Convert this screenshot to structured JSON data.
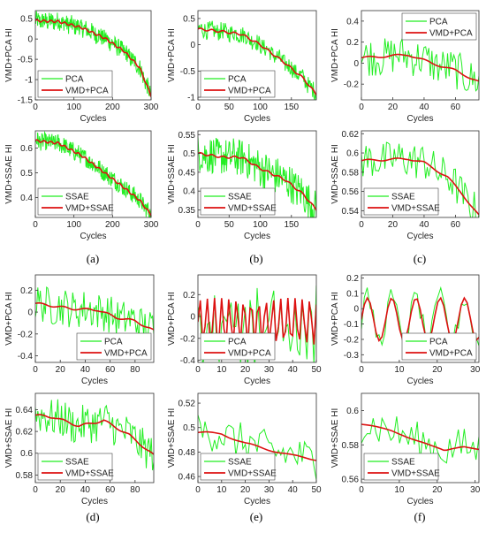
{
  "colors": {
    "raw": "#22ee22",
    "smooth": "#dd1111",
    "axis": "#333333"
  },
  "chart_data": [
    {
      "panel": "a",
      "caption": "(a)",
      "type": "line",
      "xlabel": "Cycles",
      "ylabel": "VMD+PCA HI",
      "xlim": [
        0,
        300
      ],
      "ylim": [
        -1.5,
        0.7
      ],
      "xticks": [
        0,
        100,
        200,
        300
      ],
      "yticks": [
        0.5,
        0,
        -0.5,
        -1,
        -1.5
      ],
      "legend": "bottom-left",
      "series": [
        {
          "name": "PCA",
          "values": [
            [
              0,
              0.45
            ],
            [
              60,
              0.43
            ],
            [
              120,
              0.28
            ],
            [
              180,
              0.02
            ],
            [
              230,
              -0.3
            ],
            [
              270,
              -0.7
            ],
            [
              300,
              -1.4
            ]
          ]
        },
        {
          "name": "VMD+PCA",
          "values": [
            [
              0,
              0.45
            ],
            [
              60,
              0.43
            ],
            [
              120,
              0.28
            ],
            [
              180,
              0.02
            ],
            [
              230,
              -0.3
            ],
            [
              270,
              -0.7
            ],
            [
              300,
              -1.4
            ]
          ]
        }
      ]
    },
    {
      "panel": "b",
      "type": "line",
      "xlabel": "Cycles",
      "ylabel": "VMD+PCA HI",
      "xlim": [
        0,
        190
      ],
      "ylim": [
        -1.05,
        0.65
      ],
      "xticks": [
        0,
        50,
        100,
        150
      ],
      "yticks": [
        0.5,
        0,
        -0.5,
        -1
      ],
      "legend": "bottom-left",
      "series": [
        {
          "name": "PCA",
          "values": [
            [
              0,
              0.3
            ],
            [
              40,
              0.25
            ],
            [
              70,
              0.2
            ],
            [
              100,
              0.0
            ],
            [
              140,
              -0.35
            ],
            [
              170,
              -0.65
            ],
            [
              190,
              -0.95
            ]
          ]
        },
        {
          "name": "VMD+PCA",
          "values": [
            [
              0,
              0.3
            ],
            [
              40,
              0.25
            ],
            [
              70,
              0.2
            ],
            [
              100,
              0.0
            ],
            [
              140,
              -0.35
            ],
            [
              170,
              -0.65
            ],
            [
              190,
              -0.95
            ]
          ]
        }
      ]
    },
    {
      "panel": "c",
      "type": "line",
      "xlabel": "Cycles",
      "ylabel": "VMD+PCA HI",
      "xlim": [
        0,
        75
      ],
      "ylim": [
        -0.35,
        0.5
      ],
      "xticks": [
        0,
        20,
        40,
        60
      ],
      "yticks": [
        0.4,
        0.2,
        0,
        -0.2
      ],
      "legend": "top-right",
      "series": [
        {
          "name": "PCA",
          "values": [
            [
              0,
              0.05
            ],
            [
              20,
              0.07
            ],
            [
              30,
              0.08
            ],
            [
              45,
              0.0
            ],
            [
              60,
              -0.07
            ],
            [
              75,
              -0.18
            ]
          ]
        },
        {
          "name": "VMD+PCA",
          "values": [
            [
              0,
              0.05
            ],
            [
              20,
              0.07
            ],
            [
              30,
              0.08
            ],
            [
              45,
              0.0
            ],
            [
              60,
              -0.07
            ],
            [
              75,
              -0.18
            ]
          ]
        }
      ]
    },
    {
      "panel": "a2",
      "type": "line",
      "xlabel": "Cycles",
      "ylabel": "VMD+SSAE HI",
      "xlim": [
        0,
        300
      ],
      "ylim": [
        0.32,
        0.67
      ],
      "xticks": [
        0,
        100,
        200,
        300
      ],
      "yticks": [
        0.6,
        0.5,
        0.4
      ],
      "legend": "bottom-left",
      "series": [
        {
          "name": "SSAE",
          "values": [
            [
              0,
              0.63
            ],
            [
              60,
              0.62
            ],
            [
              120,
              0.57
            ],
            [
              180,
              0.5
            ],
            [
              230,
              0.44
            ],
            [
              270,
              0.39
            ],
            [
              300,
              0.33
            ]
          ]
        },
        {
          "name": "VMD+SSAE",
          "values": [
            [
              0,
              0.63
            ],
            [
              60,
              0.62
            ],
            [
              120,
              0.57
            ],
            [
              180,
              0.5
            ],
            [
              230,
              0.44
            ],
            [
              270,
              0.39
            ],
            [
              300,
              0.33
            ]
          ]
        }
      ]
    },
    {
      "panel": "b2",
      "type": "line",
      "xlabel": "Cycles",
      "ylabel": "VMD+SSAE HI",
      "xlim": [
        0,
        190
      ],
      "ylim": [
        0.33,
        0.56
      ],
      "xticks": [
        0,
        50,
        100,
        150
      ],
      "yticks": [
        0.55,
        0.5,
        0.45,
        0.4,
        0.35
      ],
      "legend": "bottom-left",
      "series": [
        {
          "name": "SSAE",
          "values": [
            [
              0,
              0.5
            ],
            [
              40,
              0.49
            ],
            [
              70,
              0.49
            ],
            [
              100,
              0.46
            ],
            [
              140,
              0.43
            ],
            [
              170,
              0.39
            ],
            [
              190,
              0.35
            ]
          ]
        },
        {
          "name": "VMD+SSAE",
          "values": [
            [
              0,
              0.5
            ],
            [
              40,
              0.49
            ],
            [
              70,
              0.49
            ],
            [
              100,
              0.46
            ],
            [
              140,
              0.43
            ],
            [
              170,
              0.39
            ],
            [
              190,
              0.35
            ]
          ]
        }
      ]
    },
    {
      "panel": "c2",
      "type": "line",
      "xlabel": "Cycles",
      "ylabel": "VMD+SSAE HI",
      "xlim": [
        0,
        75
      ],
      "ylim": [
        0.533,
        0.623
      ],
      "xticks": [
        0,
        20,
        40,
        60
      ],
      "yticks": [
        0.62,
        0.6,
        0.58,
        0.56,
        0.54
      ],
      "legend": "bottom-left",
      "series": [
        {
          "name": "SSAE",
          "values": [
            [
              0,
              0.592
            ],
            [
              15,
              0.593
            ],
            [
              30,
              0.594
            ],
            [
              40,
              0.59
            ],
            [
              55,
              0.575
            ],
            [
              65,
              0.556
            ],
            [
              75,
              0.535
            ]
          ]
        },
        {
          "name": "VMD+SSAE",
          "values": [
            [
              0,
              0.592
            ],
            [
              15,
              0.593
            ],
            [
              30,
              0.594
            ],
            [
              40,
              0.59
            ],
            [
              55,
              0.575
            ],
            [
              65,
              0.556
            ],
            [
              75,
              0.535
            ]
          ]
        }
      ]
    },
    {
      "panel": "d",
      "type": "line",
      "xlabel": "Cycles",
      "ylabel": "VMD+PCA HI",
      "xlim": [
        0,
        95
      ],
      "ylim": [
        -0.46,
        0.34
      ],
      "xticks": [
        0,
        20,
        40,
        60,
        80
      ],
      "yticks": [
        0.2,
        0,
        -0.2,
        -0.4
      ],
      "legend": "bottom-right",
      "series": [
        {
          "name": "PCA",
          "values": [
            [
              0,
              0.08
            ],
            [
              30,
              0.03
            ],
            [
              50,
              0.02
            ],
            [
              65,
              -0.05
            ],
            [
              80,
              -0.08
            ],
            [
              95,
              -0.17
            ]
          ]
        },
        {
          "name": "VMD+PCA",
          "values": [
            [
              0,
              0.08
            ],
            [
              30,
              0.03
            ],
            [
              50,
              0.02
            ],
            [
              65,
              -0.05
            ],
            [
              80,
              -0.08
            ],
            [
              95,
              -0.17
            ]
          ]
        }
      ]
    },
    {
      "panel": "e",
      "type": "line",
      "xlabel": "Cycles",
      "ylabel": "VMD+PCA HI",
      "xlim": [
        0,
        50
      ],
      "ylim": [
        -0.42,
        0.38
      ],
      "xticks": [
        0,
        10,
        20,
        30,
        40,
        50
      ],
      "yticks": [
        0.2,
        0,
        -0.2,
        -0.4
      ],
      "legend": "bottom-left",
      "series": [
        {
          "name": "PCA",
          "values": [
            [
              0,
              0.0
            ],
            [
              50,
              0.0
            ]
          ]
        },
        {
          "name": "VMD+PCA",
          "values": [
            [
              0,
              0.0
            ],
            [
              50,
              0.0
            ]
          ]
        }
      ]
    },
    {
      "panel": "f",
      "type": "line",
      "xlabel": "Cycles",
      "ylabel": "VMD+PCA HI",
      "xlim": [
        0,
        31
      ],
      "ylim": [
        -0.35,
        0.22
      ],
      "xticks": [
        0,
        10,
        20,
        30
      ],
      "yticks": [
        0.2,
        0.1,
        0,
        -0.1,
        -0.2,
        -0.3
      ],
      "legend": "bottom-right",
      "series": [
        {
          "name": "PCA",
          "values": [
            [
              0,
              0.0
            ],
            [
              31,
              0.0
            ]
          ]
        },
        {
          "name": "VMD+PCA",
          "values": [
            [
              0,
              0.0
            ],
            [
              31,
              0.0
            ]
          ]
        }
      ]
    },
    {
      "panel": "d2",
      "type": "line",
      "xlabel": "Cycles",
      "ylabel": "VMD+SSAE HI",
      "xlim": [
        0,
        95
      ],
      "ylim": [
        0.573,
        0.655
      ],
      "xticks": [
        0,
        20,
        40,
        60,
        80
      ],
      "yticks": [
        0.64,
        0.62,
        0.6,
        0.58
      ],
      "legend": "bottom-left",
      "series": [
        {
          "name": "SSAE",
          "values": [
            [
              0,
              0.635
            ],
            [
              15,
              0.633
            ],
            [
              35,
              0.625
            ],
            [
              55,
              0.63
            ],
            [
              75,
              0.617
            ],
            [
              95,
              0.598
            ]
          ]
        },
        {
          "name": "VMD+SSAE",
          "values": [
            [
              0,
              0.635
            ],
            [
              15,
              0.633
            ],
            [
              35,
              0.625
            ],
            [
              55,
              0.63
            ],
            [
              75,
              0.617
            ],
            [
              95,
              0.598
            ]
          ]
        }
      ]
    },
    {
      "panel": "e2",
      "type": "line",
      "xlabel": "Cycles",
      "ylabel": "VMD+SSAE HI",
      "xlim": [
        0,
        50
      ],
      "ylim": [
        0.455,
        0.528
      ],
      "xticks": [
        0,
        10,
        20,
        30,
        40,
        50
      ],
      "yticks": [
        0.52,
        0.5,
        0.48,
        0.46
      ],
      "legend": "bottom-left",
      "series": [
        {
          "name": "SSAE",
          "values": [
            [
              0,
              0.496
            ],
            [
              10,
              0.495
            ],
            [
              20,
              0.487
            ],
            [
              30,
              0.482
            ],
            [
              40,
              0.477
            ],
            [
              50,
              0.474
            ]
          ]
        },
        {
          "name": "VMD+SSAE",
          "values": [
            [
              0,
              0.496
            ],
            [
              10,
              0.495
            ],
            [
              20,
              0.487
            ],
            [
              30,
              0.482
            ],
            [
              40,
              0.477
            ],
            [
              50,
              0.474
            ]
          ]
        }
      ]
    },
    {
      "panel": "f2",
      "type": "line",
      "xlabel": "Cycles",
      "ylabel": "VMD+SSAE HI",
      "xlim": [
        0,
        31
      ],
      "ylim": [
        0.558,
        0.61
      ],
      "xticks": [
        0,
        10,
        20,
        30
      ],
      "yticks": [
        0.6,
        0.58,
        0.56
      ],
      "legend": "bottom-left",
      "series": [
        {
          "name": "SSAE",
          "values": [
            [
              0,
              0.592
            ],
            [
              8,
              0.588
            ],
            [
              16,
              0.582
            ],
            [
              22,
              0.576
            ],
            [
              27,
              0.579
            ],
            [
              31,
              0.578
            ]
          ]
        },
        {
          "name": "VMD+SSAE",
          "values": [
            [
              0,
              0.592
            ],
            [
              8,
              0.588
            ],
            [
              16,
              0.582
            ],
            [
              22,
              0.576
            ],
            [
              27,
              0.579
            ],
            [
              31,
              0.578
            ]
          ]
        }
      ]
    }
  ],
  "captions": [
    "(a)",
    "(b)",
    "(c)",
    "(d)",
    "(e)",
    "(f)"
  ]
}
